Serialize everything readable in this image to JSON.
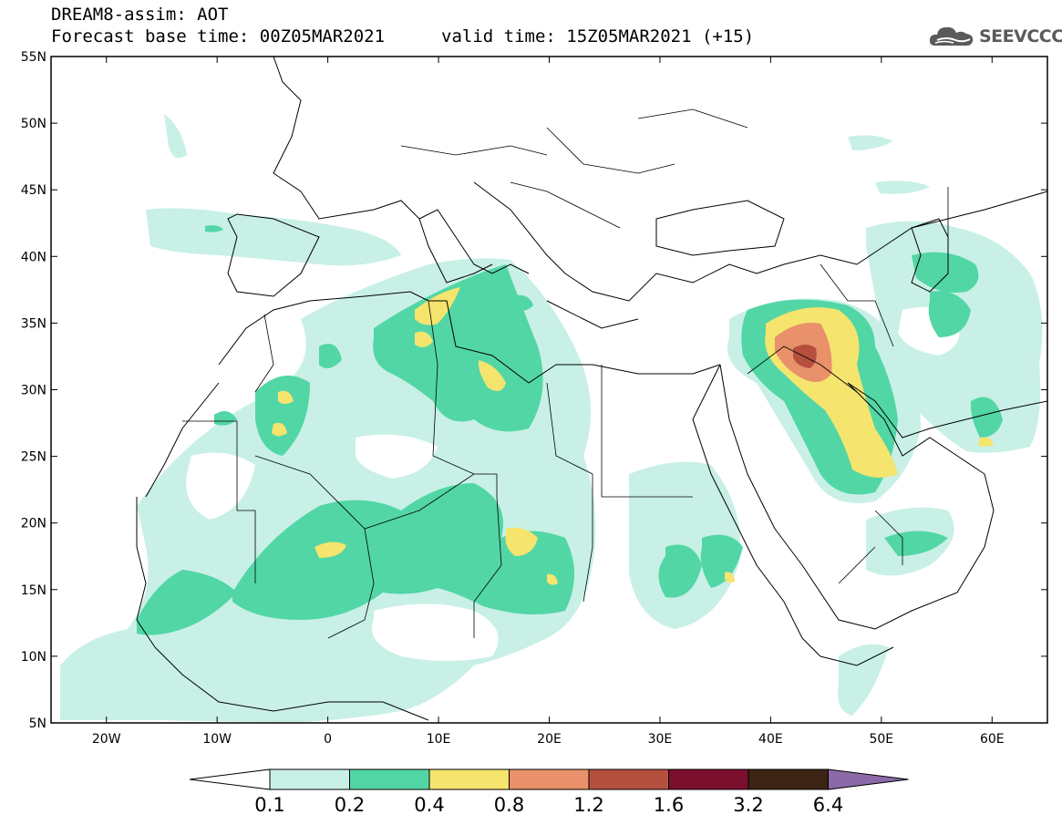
{
  "header": {
    "model_line": "DREAM8-assim: AOT",
    "base_time_line": "Forecast base time: 00Z05MAR2021",
    "valid_time_line": "valid time: 15Z05MAR2021 (+15)",
    "logo_text": "SEEVCCC"
  },
  "map": {
    "lat_labels": [
      "55N",
      "50N",
      "45N",
      "40N",
      "35N",
      "30N",
      "25N",
      "20N",
      "15N",
      "10N",
      "5N"
    ],
    "lat_values": [
      55,
      50,
      45,
      40,
      35,
      30,
      25,
      20,
      15,
      10,
      5
    ],
    "lon_labels": [
      "20W",
      "10W",
      "0",
      "10E",
      "20E",
      "30E",
      "40E",
      "50E",
      "60E"
    ],
    "lon_values": [
      -20,
      -10,
      0,
      10,
      20,
      30,
      40,
      50,
      60
    ],
    "lon_range": [
      -25,
      65
    ],
    "lat_range": [
      5,
      55
    ]
  },
  "colorbar": {
    "labels": [
      "0.1",
      "0.2",
      "0.4",
      "0.8",
      "1.2",
      "1.6",
      "3.2",
      "6.4"
    ],
    "colors": [
      "#ffffff",
      "#c8f0e6",
      "#52d6a6",
      "#f5e46e",
      "#e8916a",
      "#b5503e",
      "#7a0f2e",
      "#3b2414",
      "#8c6aa8"
    ]
  },
  "field_colors": {
    "low": "#c8f0e6",
    "mid": "#52d6a6",
    "high": "#f5e46e",
    "very_high": "#e8916a",
    "extreme": "#b5503e"
  }
}
